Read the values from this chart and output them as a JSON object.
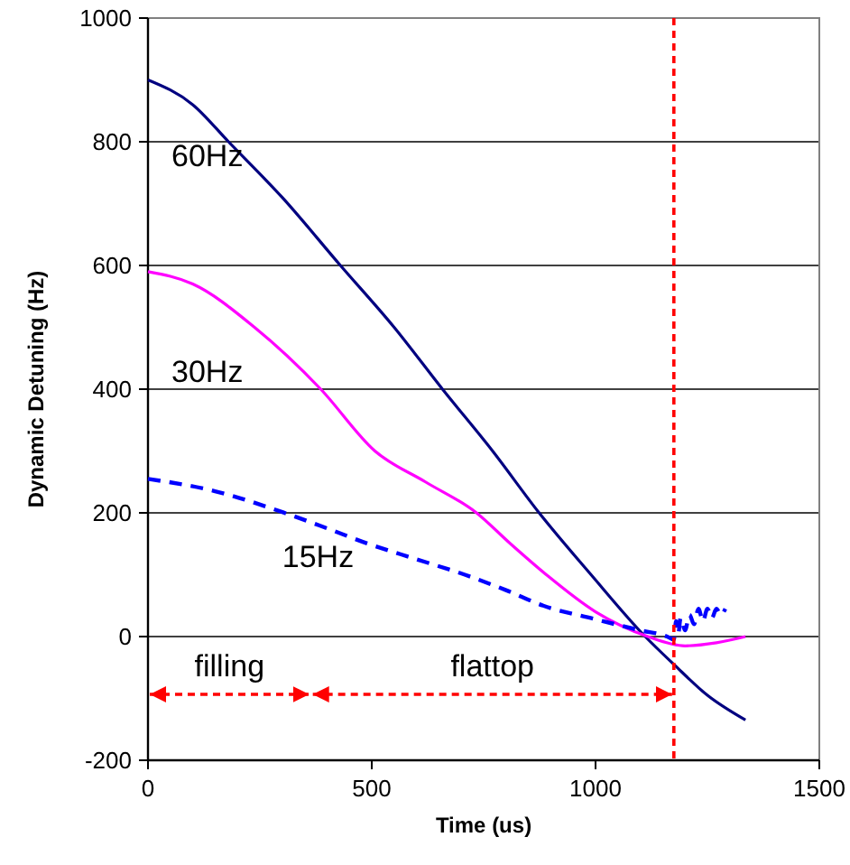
{
  "chart_data": {
    "type": "line",
    "xlabel": "Time (us)",
    "ylabel": "Dynamic Detuning (Hz)",
    "xlim": [
      0,
      1500
    ],
    "xticks": [
      0,
      500,
      1000,
      1500
    ],
    "ylim": [
      -200,
      1000
    ],
    "yticks": [
      -200,
      0,
      200,
      400,
      600,
      800,
      1000
    ],
    "grid": "y",
    "marker": "none",
    "series": [
      {
        "name": "60Hz",
        "color": "#000080",
        "line_style": "solid",
        "x": [
          0,
          100,
          180,
          300,
          430,
          550,
          658,
          770,
          874,
          990,
          1111,
          1175,
          1250,
          1335
        ],
        "values": [
          900,
          860,
          800,
          710,
          600,
          500,
          400,
          300,
          200,
          100,
          0,
          -45,
          -95,
          -135
        ]
      },
      {
        "name": "30Hz",
        "color": "#ff00ff",
        "line_style": "solid",
        "x": [
          0,
          100,
          238,
          386,
          507,
          620,
          734,
          810,
          890,
          1000,
          1117,
          1200,
          1270,
          1335
        ],
        "values": [
          590,
          570,
          500,
          400,
          300,
          250,
          200,
          150,
          100,
          40,
          0,
          -15,
          -10,
          0
        ]
      },
      {
        "name": "15Hz",
        "color": "#0000ff",
        "line_style": "dashed",
        "x": [
          0,
          150,
          305,
          400,
          492,
          600,
          708,
          800,
          883,
          1000,
          1100,
          1160,
          1175,
          1180,
          1185,
          1190,
          1200,
          1210,
          1220,
          1230,
          1240,
          1250,
          1260,
          1270,
          1280,
          1290
        ],
        "values": [
          255,
          235,
          200,
          175,
          150,
          125,
          100,
          75,
          50,
          28,
          10,
          0,
          -5,
          25,
          5,
          30,
          10,
          35,
          20,
          45,
          25,
          45,
          30,
          45,
          35,
          45
        ]
      }
    ],
    "ref_lines": [
      {
        "axis": "x",
        "value": 1175,
        "color": "#ff0000",
        "line_style": "dashed"
      }
    ],
    "annotations": [
      "filling",
      "flattop"
    ]
  }
}
